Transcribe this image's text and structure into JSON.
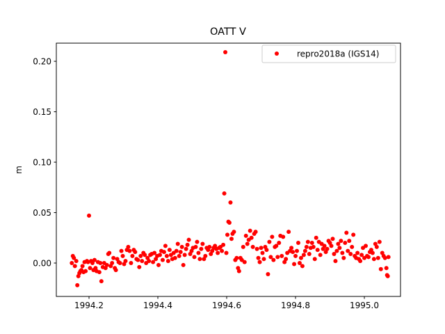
{
  "chart_data": {
    "type": "scatter",
    "title": "OATT V",
    "xlabel": "",
    "ylabel": "m",
    "xlim": [
      1994.105,
      1995.105
    ],
    "ylim": [
      -0.0331,
      0.218
    ],
    "xticks": [
      1994.2,
      1994.4,
      1994.6,
      1994.8,
      1995.0
    ],
    "xtick_labels": [
      "1994.2",
      "1994.4",
      "1994.6",
      "1994.8",
      "1995.0"
    ],
    "yticks": [
      0.0,
      0.05,
      0.1,
      0.15,
      0.2
    ],
    "ytick_labels": [
      "0.00",
      "0.05",
      "0.10",
      "0.15",
      "0.20"
    ],
    "grid": false,
    "legend": {
      "position": "top-right",
      "entries": [
        "repro2018a (IGS14)"
      ]
    },
    "series": [
      {
        "name": "repro2018a (IGS14)",
        "color": "#ff0000",
        "marker": "circle",
        "points": [
          [
            1994.15,
            0.0
          ],
          [
            1994.153,
            0.007
          ],
          [
            1994.156,
            0.005
          ],
          [
            1994.159,
            -0.003
          ],
          [
            1994.163,
            0.002
          ],
          [
            1994.166,
            -0.022
          ],
          [
            1994.169,
            -0.013
          ],
          [
            1994.172,
            -0.01
          ],
          [
            1994.175,
            -0.008
          ],
          [
            1994.178,
            -0.007
          ],
          [
            1994.181,
            -0.003
          ],
          [
            1994.184,
            -0.009
          ],
          [
            1994.187,
            0.001
          ],
          [
            1994.19,
            -0.008
          ],
          [
            1994.194,
            0.002
          ],
          [
            1994.197,
            0.001
          ],
          [
            1994.2,
            0.047
          ],
          [
            1994.203,
            -0.005
          ],
          [
            1994.206,
            0.002
          ],
          [
            1994.21,
            0.0
          ],
          [
            1994.213,
            -0.007
          ],
          [
            1994.216,
            0.003
          ],
          [
            1994.219,
            -0.005
          ],
          [
            1994.222,
            -0.008
          ],
          [
            1994.226,
            0.001
          ],
          [
            1994.23,
            -0.009
          ],
          [
            1994.233,
            0.0
          ],
          [
            1994.236,
            -0.018
          ],
          [
            1994.24,
            -0.004
          ],
          [
            1994.244,
            0.0
          ],
          [
            1994.248,
            -0.005
          ],
          [
            1994.252,
            -0.002
          ],
          [
            1994.256,
            0.009
          ],
          [
            1994.259,
            0.01
          ],
          [
            1994.263,
            -0.003
          ],
          [
            1994.267,
            0.0
          ],
          [
            1994.271,
            0.005
          ],
          [
            1994.275,
            -0.005
          ],
          [
            1994.278,
            -0.007
          ],
          [
            1994.282,
            0.004
          ],
          [
            1994.286,
            0.001
          ],
          [
            1994.29,
            0.0
          ],
          [
            1994.294,
            0.012
          ],
          [
            1994.298,
            0.007
          ],
          [
            1994.302,
            -0.001
          ],
          [
            1994.306,
            0.002
          ],
          [
            1994.31,
            0.013
          ],
          [
            1994.314,
            0.016
          ],
          [
            1994.318,
            0.012
          ],
          [
            1994.322,
            0.0
          ],
          [
            1994.326,
            0.007
          ],
          [
            1994.33,
            0.013
          ],
          [
            1994.334,
            0.011
          ],
          [
            1994.338,
            0.004
          ],
          [
            1994.342,
            0.003
          ],
          [
            1994.346,
            -0.004
          ],
          [
            1994.35,
            0.007
          ],
          [
            1994.354,
            0.002
          ],
          [
            1994.358,
            0.01
          ],
          [
            1994.362,
            0.008
          ],
          [
            1994.366,
            0.0
          ],
          [
            1994.37,
            0.005
          ],
          [
            1994.374,
            0.002
          ],
          [
            1994.378,
            0.008
          ],
          [
            1994.382,
            0.009
          ],
          [
            1994.386,
            0.001
          ],
          [
            1994.39,
            0.01
          ],
          [
            1994.394,
            0.004
          ],
          [
            1994.398,
            0.007
          ],
          [
            1994.402,
            -0.002
          ],
          [
            1994.406,
            0.008
          ],
          [
            1994.41,
            0.012
          ],
          [
            1994.414,
            0.003
          ],
          [
            1994.418,
            0.011
          ],
          [
            1994.422,
            0.017
          ],
          [
            1994.426,
            0.007
          ],
          [
            1994.43,
            0.002
          ],
          [
            1994.434,
            0.013
          ],
          [
            1994.438,
            0.008
          ],
          [
            1994.442,
            0.004
          ],
          [
            1994.446,
            0.01
          ],
          [
            1994.45,
            0.005
          ],
          [
            1994.454,
            0.012
          ],
          [
            1994.458,
            0.019
          ],
          [
            1994.462,
            0.007
          ],
          [
            1994.466,
            0.011
          ],
          [
            1994.47,
            0.016
          ],
          [
            1994.474,
            -0.002
          ],
          [
            1994.478,
            0.008
          ],
          [
            1994.482,
            0.014
          ],
          [
            1994.486,
            0.018
          ],
          [
            1994.49,
            0.023
          ],
          [
            1994.494,
            0.009
          ],
          [
            1994.498,
            0.012
          ],
          [
            1994.502,
            0.015
          ],
          [
            1994.506,
            0.006
          ],
          [
            1994.51,
            0.016
          ],
          [
            1994.514,
            0.021
          ],
          [
            1994.518,
            0.01
          ],
          [
            1994.522,
            0.004
          ],
          [
            1994.526,
            0.014
          ],
          [
            1994.53,
            0.019
          ],
          [
            1994.534,
            0.004
          ],
          [
            1994.538,
            0.007
          ],
          [
            1994.542,
            0.015
          ],
          [
            1994.546,
            0.013
          ],
          [
            1994.55,
            0.016
          ],
          [
            1994.554,
            0.009
          ],
          [
            1994.558,
            0.012
          ],
          [
            1994.562,
            0.015
          ],
          [
            1994.566,
            0.017
          ],
          [
            1994.57,
            0.014
          ],
          [
            1994.574,
            0.01
          ],
          [
            1994.578,
            0.015
          ],
          [
            1994.582,
            0.016
          ],
          [
            1994.586,
            0.012
          ],
          [
            1994.59,
            0.018
          ],
          [
            1994.593,
            0.069
          ],
          [
            1994.596,
            0.209
          ],
          [
            1994.599,
            0.01
          ],
          [
            1994.602,
            0.028
          ],
          [
            1994.605,
            0.041
          ],
          [
            1994.608,
            0.04
          ],
          [
            1994.611,
            0.06
          ],
          [
            1994.614,
            0.024
          ],
          [
            1994.617,
            0.029
          ],
          [
            1994.621,
            0.031
          ],
          [
            1994.625,
            0.003
          ],
          [
            1994.629,
            0.005
          ],
          [
            1994.633,
            -0.005
          ],
          [
            1994.636,
            -0.008
          ],
          [
            1994.64,
            0.005
          ],
          [
            1994.644,
            0.003
          ],
          [
            1994.648,
            0.016
          ],
          [
            1994.652,
            0.001
          ],
          [
            1994.656,
            0.027
          ],
          [
            1994.66,
            0.019
          ],
          [
            1994.664,
            0.023
          ],
          [
            1994.668,
            0.032
          ],
          [
            1994.672,
            0.025
          ],
          [
            1994.676,
            0.016
          ],
          [
            1994.68,
            0.029
          ],
          [
            1994.684,
            0.031
          ],
          [
            1994.688,
            0.014
          ],
          [
            1994.692,
            0.005
          ],
          [
            1994.696,
            0.001
          ],
          [
            1994.7,
            0.015
          ],
          [
            1994.704,
            0.01
          ],
          [
            1994.708,
            0.004
          ],
          [
            1994.712,
            0.016
          ],
          [
            1994.716,
            0.013
          ],
          [
            1994.72,
            -0.011
          ],
          [
            1994.724,
            0.021
          ],
          [
            1994.728,
            0.006
          ],
          [
            1994.732,
            0.026
          ],
          [
            1994.736,
            0.003
          ],
          [
            1994.74,
            0.016
          ],
          [
            1994.744,
            0.017
          ],
          [
            1994.748,
            0.006
          ],
          [
            1994.752,
            0.02
          ],
          [
            1994.756,
            0.027
          ],
          [
            1994.76,
            0.007
          ],
          [
            1994.764,
            0.026
          ],
          [
            1994.768,
            0.001
          ],
          [
            1994.772,
            0.004
          ],
          [
            1994.776,
            0.01
          ],
          [
            1994.78,
            0.031
          ],
          [
            1994.784,
            0.012
          ],
          [
            1994.788,
            0.015
          ],
          [
            1994.792,
            0.011
          ],
          [
            1994.796,
            -0.001
          ],
          [
            1994.8,
            0.007
          ],
          [
            1994.804,
            0.012
          ],
          [
            1994.808,
            0.02
          ],
          [
            1994.812,
            0.0
          ],
          [
            1994.816,
            0.005
          ],
          [
            1994.82,
            -0.003
          ],
          [
            1994.824,
            0.008
          ],
          [
            1994.828,
            0.012
          ],
          [
            1994.832,
            0.016
          ],
          [
            1994.836,
            0.021
          ],
          [
            1994.84,
            0.009
          ],
          [
            1994.844,
            0.015
          ],
          [
            1994.848,
            0.02
          ],
          [
            1994.852,
            0.016
          ],
          [
            1994.856,
            0.004
          ],
          [
            1994.86,
            0.025
          ],
          [
            1994.864,
            0.013
          ],
          [
            1994.868,
            0.021
          ],
          [
            1994.872,
            0.008
          ],
          [
            1994.876,
            0.019
          ],
          [
            1994.88,
            0.014
          ],
          [
            1994.884,
            0.017
          ],
          [
            1994.888,
            0.011
          ],
          [
            1994.892,
            0.014
          ],
          [
            1994.896,
            0.022
          ],
          [
            1994.9,
            0.02
          ],
          [
            1994.904,
            0.017
          ],
          [
            1994.908,
            0.024
          ],
          [
            1994.912,
            0.009
          ],
          [
            1994.916,
            0.002
          ],
          [
            1994.92,
            0.012
          ],
          [
            1994.924,
            0.019
          ],
          [
            1994.928,
            0.015
          ],
          [
            1994.932,
            0.022
          ],
          [
            1994.936,
            0.01
          ],
          [
            1994.94,
            0.005
          ],
          [
            1994.944,
            0.02
          ],
          [
            1994.948,
            0.03
          ],
          [
            1994.952,
            0.012
          ],
          [
            1994.956,
            0.022
          ],
          [
            1994.96,
            0.009
          ],
          [
            1994.964,
            0.016
          ],
          [
            1994.968,
            0.028
          ],
          [
            1994.972,
            0.007
          ],
          [
            1994.976,
            0.005
          ],
          [
            1994.98,
            0.01
          ],
          [
            1994.984,
            0.004
          ],
          [
            1994.988,
            0.002
          ],
          [
            1994.992,
            0.008
          ],
          [
            1994.996,
            0.015
          ],
          [
            1995.0,
            0.005
          ],
          [
            1995.004,
            0.017
          ],
          [
            1995.008,
            0.007
          ],
          [
            1995.012,
            0.006
          ],
          [
            1995.016,
            0.011
          ],
          [
            1995.02,
            0.013
          ],
          [
            1995.024,
            0.01
          ],
          [
            1995.028,
            0.004
          ],
          [
            1995.032,
            0.019
          ],
          [
            1995.036,
            0.016
          ],
          [
            1995.04,
            0.005
          ],
          [
            1995.044,
            0.021
          ],
          [
            1995.048,
            -0.006
          ],
          [
            1995.052,
            0.01
          ],
          [
            1995.056,
            0.007
          ],
          [
            1995.06,
            0.005
          ],
          [
            1995.064,
            -0.005
          ],
          [
            1995.066,
            -0.012
          ],
          [
            1995.068,
            -0.013
          ],
          [
            1995.07,
            0.006
          ]
        ]
      }
    ]
  }
}
